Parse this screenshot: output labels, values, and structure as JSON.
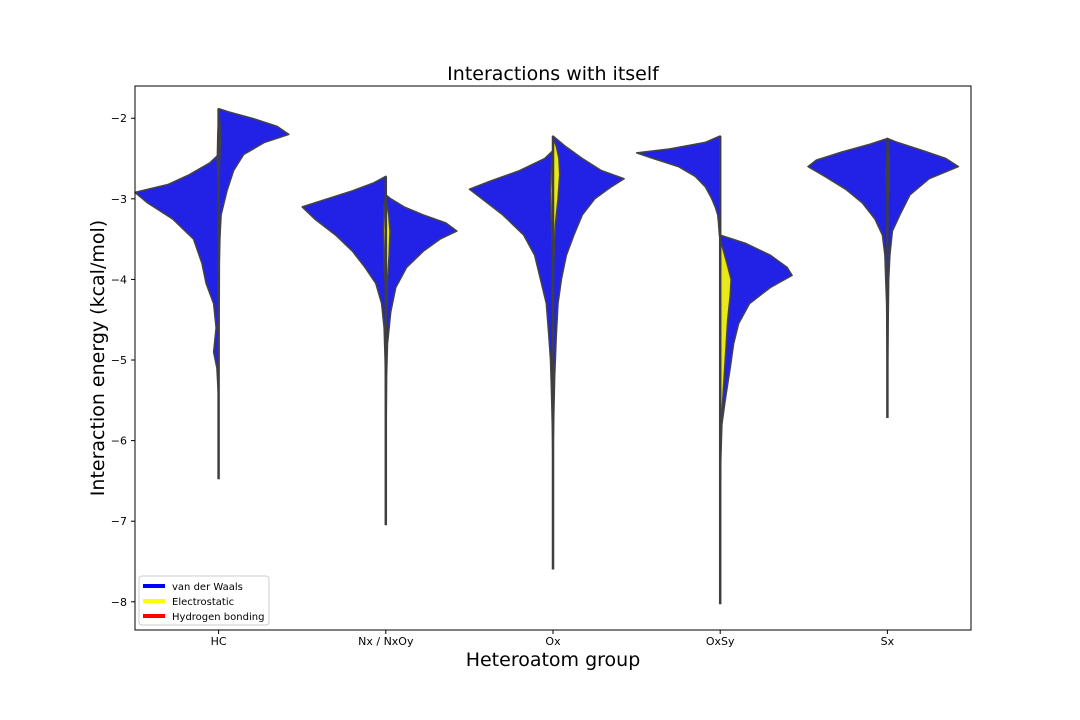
{
  "chart_data": {
    "type": "violin",
    "title": "Interactions with itself",
    "xlabel": "Heteroatom group",
    "ylabel": "Interaction energy (kcal/mol)",
    "categories": [
      "HC",
      "Nx / NxOy",
      "Ox",
      "OxSy",
      "Sx"
    ],
    "ylim": [
      -8.35,
      -1.6
    ],
    "yticks": [
      -2,
      -3,
      -4,
      -5,
      -6,
      -7,
      -8
    ],
    "ytick_labels": [
      "−2",
      "−3",
      "−4",
      "−5",
      "−6",
      "−7",
      "−8"
    ],
    "grid": false,
    "legend_position": "lower-left",
    "legend": [
      {
        "label": "van der Waals",
        "color": "#0000ff"
      },
      {
        "label": "Electrostatic",
        "color": "#ffff00"
      },
      {
        "label": "Hydrogen bonding",
        "color": "#ff0000"
      }
    ],
    "series": [
      {
        "name": "van der Waals",
        "color": "#2222e6",
        "side": "right",
        "distributions": [
          [
            [
              -1.88,
              0.0
            ],
            [
              -1.92,
              0.12
            ],
            [
              -2.0,
              0.4
            ],
            [
              -2.1,
              0.7
            ],
            [
              -2.2,
              0.84
            ],
            [
              -2.3,
              0.55
            ],
            [
              -2.45,
              0.3
            ],
            [
              -2.65,
              0.18
            ],
            [
              -2.9,
              0.1
            ],
            [
              -3.2,
              0.03
            ],
            [
              -3.5,
              0.015
            ],
            [
              -3.8,
              0.01
            ],
            [
              -4.2,
              0.008
            ],
            [
              -4.6,
              0.005
            ],
            [
              -5.0,
              0.004
            ],
            [
              -5.5,
              0.0
            ]
          ],
          [
            [
              -2.95,
              0.0
            ],
            [
              -3.0,
              0.06
            ],
            [
              -3.1,
              0.22
            ],
            [
              -3.2,
              0.45
            ],
            [
              -3.3,
              0.72
            ],
            [
              -3.4,
              0.85
            ],
            [
              -3.5,
              0.65
            ],
            [
              -3.65,
              0.45
            ],
            [
              -3.85,
              0.25
            ],
            [
              -4.1,
              0.12
            ],
            [
              -4.4,
              0.06
            ],
            [
              -4.8,
              0.02
            ],
            [
              -5.2,
              0.01
            ],
            [
              -5.8,
              0.005
            ],
            [
              -6.5,
              0.0
            ]
          ],
          [
            [
              -2.22,
              0.0
            ],
            [
              -2.35,
              0.15
            ],
            [
              -2.5,
              0.35
            ],
            [
              -2.65,
              0.58
            ],
            [
              -2.75,
              0.85
            ],
            [
              -2.85,
              0.7
            ],
            [
              -3.0,
              0.5
            ],
            [
              -3.2,
              0.35
            ],
            [
              -3.45,
              0.25
            ],
            [
              -3.7,
              0.16
            ],
            [
              -4.0,
              0.1
            ],
            [
              -4.3,
              0.06
            ],
            [
              -4.7,
              0.04
            ],
            [
              -5.2,
              0.02
            ],
            [
              -5.7,
              0.01
            ],
            [
              -6.2,
              0.0
            ]
          ],
          [
            [
              -3.45,
              0.0
            ],
            [
              -3.55,
              0.3
            ],
            [
              -3.7,
              0.6
            ],
            [
              -3.85,
              0.8
            ],
            [
              -3.95,
              0.86
            ],
            [
              -4.1,
              0.6
            ],
            [
              -4.3,
              0.35
            ],
            [
              -4.55,
              0.22
            ],
            [
              -4.8,
              0.16
            ],
            [
              -5.1,
              0.12
            ],
            [
              -5.5,
              0.06
            ],
            [
              -5.8,
              0.02
            ],
            [
              -6.2,
              0.008
            ],
            [
              -6.6,
              0.0
            ]
          ],
          [
            [
              -2.25,
              0.0
            ],
            [
              -2.3,
              0.12
            ],
            [
              -2.4,
              0.42
            ],
            [
              -2.5,
              0.7
            ],
            [
              -2.6,
              0.85
            ],
            [
              -2.75,
              0.5
            ],
            [
              -2.95,
              0.27
            ],
            [
              -3.2,
              0.15
            ],
            [
              -3.4,
              0.06
            ],
            [
              -3.7,
              0.03
            ],
            [
              -4.0,
              0.015
            ],
            [
              -4.5,
              0.01
            ],
            [
              -5.0,
              0.005
            ],
            [
              -5.5,
              0.0
            ]
          ]
        ]
      },
      {
        "name": "van der Waals",
        "color": "#2222e6",
        "side": "left",
        "distributions": [
          [
            [
              -2.45,
              0.0
            ],
            [
              -2.55,
              0.1
            ],
            [
              -2.7,
              0.35
            ],
            [
              -2.82,
              0.6
            ],
            [
              -2.92,
              1.0
            ],
            [
              -3.05,
              0.85
            ],
            [
              -3.25,
              0.55
            ],
            [
              -3.5,
              0.3
            ],
            [
              -3.8,
              0.2
            ],
            [
              -4.05,
              0.15
            ],
            [
              -4.3,
              0.06
            ],
            [
              -4.6,
              0.03
            ],
            [
              -4.9,
              0.06
            ],
            [
              -5.1,
              0.02
            ],
            [
              -5.4,
              0.005
            ],
            [
              -5.7,
              0.0
            ]
          ],
          [
            [
              -2.72,
              0.0
            ],
            [
              -2.8,
              0.14
            ],
            [
              -2.9,
              0.4
            ],
            [
              -3.0,
              0.7
            ],
            [
              -3.1,
              1.0
            ],
            [
              -3.25,
              0.85
            ],
            [
              -3.45,
              0.6
            ],
            [
              -3.65,
              0.4
            ],
            [
              -3.85,
              0.25
            ],
            [
              -4.05,
              0.12
            ],
            [
              -4.3,
              0.05
            ],
            [
              -4.6,
              0.02
            ],
            [
              -5.0,
              0.008
            ],
            [
              -5.5,
              0.0
            ]
          ],
          [
            [
              -2.4,
              0.0
            ],
            [
              -2.5,
              0.1
            ],
            [
              -2.65,
              0.4
            ],
            [
              -2.78,
              0.75
            ],
            [
              -2.88,
              1.0
            ],
            [
              -3.0,
              0.85
            ],
            [
              -3.2,
              0.6
            ],
            [
              -3.45,
              0.35
            ],
            [
              -3.7,
              0.22
            ],
            [
              -4.0,
              0.15
            ],
            [
              -4.3,
              0.08
            ],
            [
              -4.7,
              0.05
            ],
            [
              -5.0,
              0.03
            ],
            [
              -5.5,
              0.015
            ],
            [
              -6.0,
              0.005
            ],
            [
              -6.5,
              0.0
            ]
          ],
          [
            [
              -2.22,
              0.0
            ],
            [
              -2.3,
              0.18
            ],
            [
              -2.38,
              0.6
            ],
            [
              -2.43,
              1.0
            ],
            [
              -2.5,
              0.8
            ],
            [
              -2.6,
              0.5
            ],
            [
              -2.72,
              0.3
            ],
            [
              -2.85,
              0.18
            ],
            [
              -3.0,
              0.1
            ],
            [
              -3.1,
              0.06
            ],
            [
              -3.2,
              0.03
            ],
            [
              -3.3,
              0.02
            ],
            [
              -3.45,
              0.01
            ],
            [
              -3.5,
              0.0
            ]
          ],
          [
            [
              -2.25,
              0.0
            ],
            [
              -2.32,
              0.2
            ],
            [
              -2.42,
              0.55
            ],
            [
              -2.52,
              0.85
            ],
            [
              -2.6,
              0.95
            ],
            [
              -2.72,
              0.75
            ],
            [
              -2.88,
              0.5
            ],
            [
              -3.05,
              0.3
            ],
            [
              -3.25,
              0.15
            ],
            [
              -3.45,
              0.06
            ],
            [
              -3.7,
              0.03
            ],
            [
              -4.0,
              0.02
            ],
            [
              -4.3,
              0.01
            ],
            [
              -4.8,
              0.005
            ],
            [
              -5.2,
              0.0
            ]
          ]
        ]
      },
      {
        "name": "Electrostatic",
        "color": "#e8e81a",
        "side": "right",
        "distributions": [
          [
            [
              -1.95,
              0.0
            ],
            [
              -2.05,
              0.015
            ],
            [
              -2.3,
              0.02
            ],
            [
              -2.6,
              0.01
            ],
            [
              -3.0,
              0.0
            ]
          ],
          [
            [
              -3.0,
              0.0
            ],
            [
              -3.2,
              0.035
            ],
            [
              -3.4,
              0.05
            ],
            [
              -3.7,
              0.04
            ],
            [
              -4.0,
              0.02
            ],
            [
              -4.4,
              0.01
            ],
            [
              -5.0,
              0.0
            ]
          ],
          [
            [
              -2.25,
              0.0
            ],
            [
              -2.35,
              0.04
            ],
            [
              -2.5,
              0.07
            ],
            [
              -2.7,
              0.08
            ],
            [
              -3.0,
              0.06
            ],
            [
              -3.3,
              0.03
            ],
            [
              -3.6,
              0.015
            ],
            [
              -4.0,
              0.0
            ]
          ],
          [
            [
              -3.5,
              0.0
            ],
            [
              -3.8,
              0.08
            ],
            [
              -4.0,
              0.13
            ],
            [
              -4.2,
              0.12
            ],
            [
              -4.5,
              0.09
            ],
            [
              -5.0,
              0.06
            ],
            [
              -5.5,
              0.03
            ],
            [
              -6.0,
              0.0
            ]
          ],
          [
            [
              -2.3,
              0.0
            ],
            [
              -2.5,
              0.02
            ],
            [
              -2.8,
              0.02
            ],
            [
              -3.1,
              0.0
            ]
          ]
        ]
      },
      {
        "name": "Electrostatic",
        "color": "#e8e81a",
        "side": "left",
        "distributions": [
          [
            [
              -2.0,
              0.0
            ],
            [
              -2.2,
              0.01
            ],
            [
              -2.5,
              0.015
            ],
            [
              -2.9,
              0.0
            ]
          ],
          [
            [
              -2.95,
              0.0
            ],
            [
              -3.1,
              0.02
            ],
            [
              -3.4,
              0.03
            ],
            [
              -3.8,
              0.02
            ],
            [
              -4.2,
              0.0
            ]
          ],
          [
            [
              -2.4,
              0.0
            ],
            [
              -2.6,
              0.02
            ],
            [
              -2.9,
              0.03
            ],
            [
              -3.3,
              0.02
            ],
            [
              -3.8,
              0.0
            ]
          ],
          [
            [
              -3.5,
              0.0
            ],
            [
              -4.0,
              0.0
            ]
          ],
          [
            [
              -2.4,
              0.0
            ],
            [
              -2.7,
              0.015
            ],
            [
              -3.0,
              0.0
            ]
          ]
        ]
      }
    ],
    "whiskers": [
      {
        "category": "HC",
        "ymax": -1.88,
        "ymin": -6.48
      },
      {
        "category": "Nx / NxOy",
        "ymax": -2.72,
        "ymin": -7.05
      },
      {
        "category": "Ox",
        "ymax": -2.22,
        "ymin": -7.6
      },
      {
        "category": "OxSy",
        "ymax": -2.22,
        "ymin": -8.03
      },
      {
        "category": "Sx",
        "ymax": -2.25,
        "ymin": -5.72
      }
    ]
  }
}
